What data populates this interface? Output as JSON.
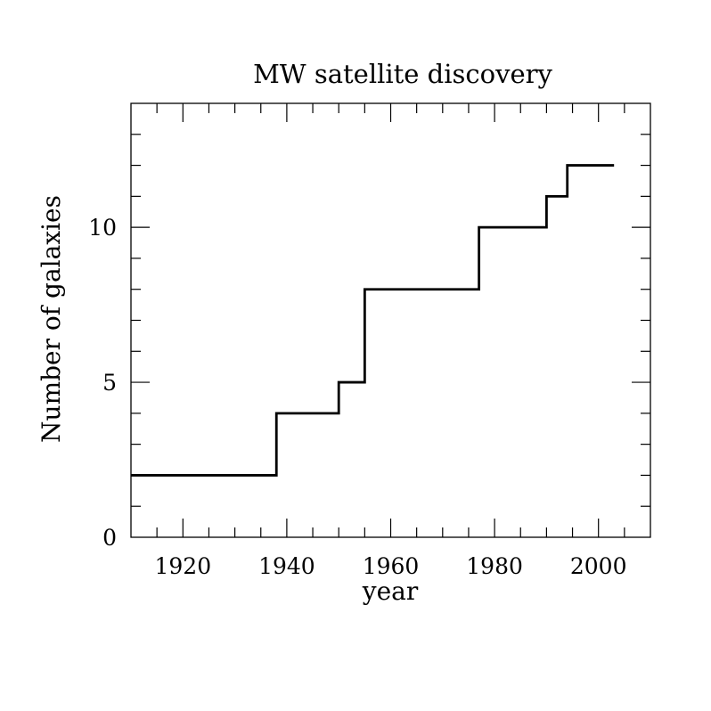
{
  "chart_data": {
    "type": "line",
    "step": true,
    "title": "MW satellite discovery",
    "xlabel": "year",
    "ylabel": "Number of galaxies",
    "xlim": [
      1910,
      2010
    ],
    "ylim": [
      0,
      14
    ],
    "x_ticks": [
      1920,
      1940,
      1960,
      1980,
      2000
    ],
    "x_tick_labels": [
      "1920",
      "1940",
      "1960",
      "1980",
      "2000"
    ],
    "y_ticks": [
      0,
      5,
      10
    ],
    "y_tick_labels": [
      "0",
      "5",
      "10"
    ],
    "x_minor_step": 5,
    "y_minor_step": 1,
    "grid": false,
    "line_color": "#000000",
    "series": [
      {
        "x": [
          1910,
          1938,
          1950,
          1955,
          1977,
          1990,
          1994,
          2003
        ],
        "y": [
          2,
          4,
          5,
          8,
          10,
          11,
          12,
          12
        ]
      }
    ]
  }
}
